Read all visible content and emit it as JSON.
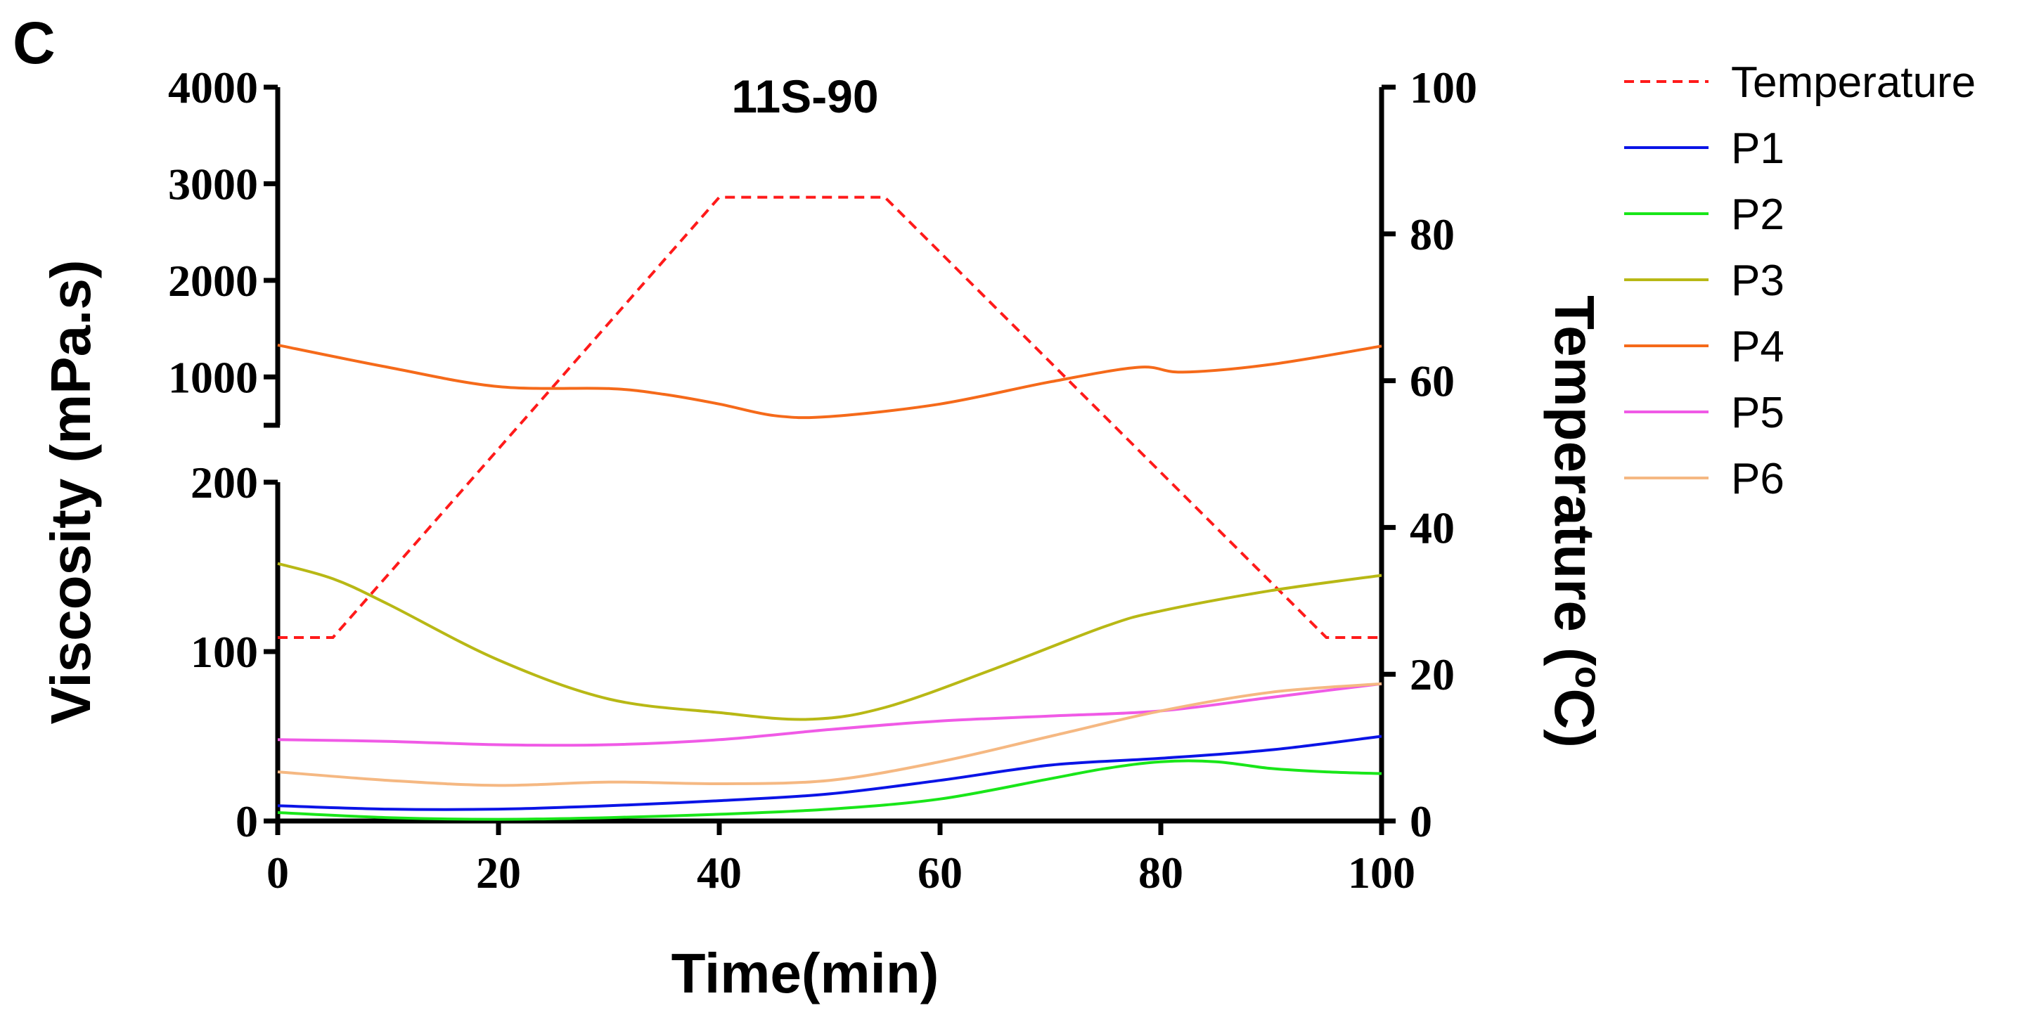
{
  "panel_label": "C",
  "chart_data": {
    "type": "line",
    "title": "11S-90",
    "xlabel": "Time(min)",
    "ylabel_left": "Viscosity (mPa.s)",
    "ylabel_right_prefix": "Temperature (",
    "ylabel_right_degree": "o",
    "ylabel_right_suffix": "C)",
    "x_range": [
      0,
      100
    ],
    "x_ticks": [
      0,
      20,
      40,
      60,
      80,
      100
    ],
    "y_left_lower_range": [
      0,
      200
    ],
    "y_left_lower_ticks": [
      0,
      100,
      200
    ],
    "y_left_upper_range": [
      500,
      4000
    ],
    "y_left_upper_ticks": [
      1000,
      2000,
      3000,
      4000
    ],
    "y_right_range": [
      0,
      100
    ],
    "y_right_ticks": [
      0,
      20,
      40,
      60,
      80,
      100
    ],
    "axis_break": true,
    "legend_position": "right",
    "colors": {
      "Temperature": "#ff1a1a",
      "P1": "#0a14e6",
      "P2": "#19e619",
      "P3": "#b8b815",
      "P4": "#f56a1a",
      "P5": "#f05ae6",
      "P6": "#f5b882"
    },
    "series": [
      {
        "name": "Temperature",
        "axis": "right",
        "style": "dashed",
        "x": [
          0,
          5,
          40,
          55,
          95,
          100
        ],
        "y": [
          25,
          25,
          85,
          85,
          25,
          25
        ]
      },
      {
        "name": "P1",
        "axis": "left",
        "x": [
          0,
          10,
          20,
          30,
          40,
          50,
          60,
          70,
          80,
          90,
          100
        ],
        "y": [
          9,
          7,
          7,
          9,
          12,
          16,
          24,
          33,
          37,
          42,
          50
        ]
      },
      {
        "name": "P2",
        "axis": "left",
        "x": [
          0,
          10,
          20,
          30,
          40,
          50,
          60,
          70,
          75,
          80,
          85,
          90,
          95,
          100
        ],
        "y": [
          5,
          2,
          1,
          2,
          4,
          7,
          13,
          25,
          31,
          35,
          35,
          31,
          29,
          28
        ]
      },
      {
        "name": "P3",
        "axis": "left",
        "x": [
          0,
          5,
          10,
          20,
          30,
          40,
          48,
          55,
          65,
          75,
          80,
          90,
          100
        ],
        "y": [
          152,
          143,
          128,
          95,
          72,
          64,
          60,
          67,
          90,
          115,
          124,
          136,
          145
        ]
      },
      {
        "name": "P4",
        "axis": "left",
        "x": [
          0,
          10,
          20,
          30,
          35,
          40,
          45,
          50,
          60,
          70,
          78,
          82,
          90,
          100
        ],
        "y": [
          1330,
          1100,
          900,
          880,
          820,
          720,
          600,
          590,
          720,
          950,
          1100,
          1050,
          1130,
          1320
        ]
      },
      {
        "name": "P5",
        "axis": "left",
        "x": [
          0,
          10,
          20,
          30,
          40,
          50,
          60,
          70,
          80,
          90,
          100
        ],
        "y": [
          48,
          47,
          45,
          45,
          48,
          54,
          59,
          62,
          65,
          73,
          81
        ]
      },
      {
        "name": "P6",
        "axis": "left",
        "x": [
          0,
          10,
          20,
          30,
          40,
          50,
          60,
          70,
          80,
          90,
          100
        ],
        "y": [
          29,
          24,
          21,
          23,
          22,
          24,
          35,
          50,
          65,
          76,
          81
        ]
      }
    ]
  }
}
